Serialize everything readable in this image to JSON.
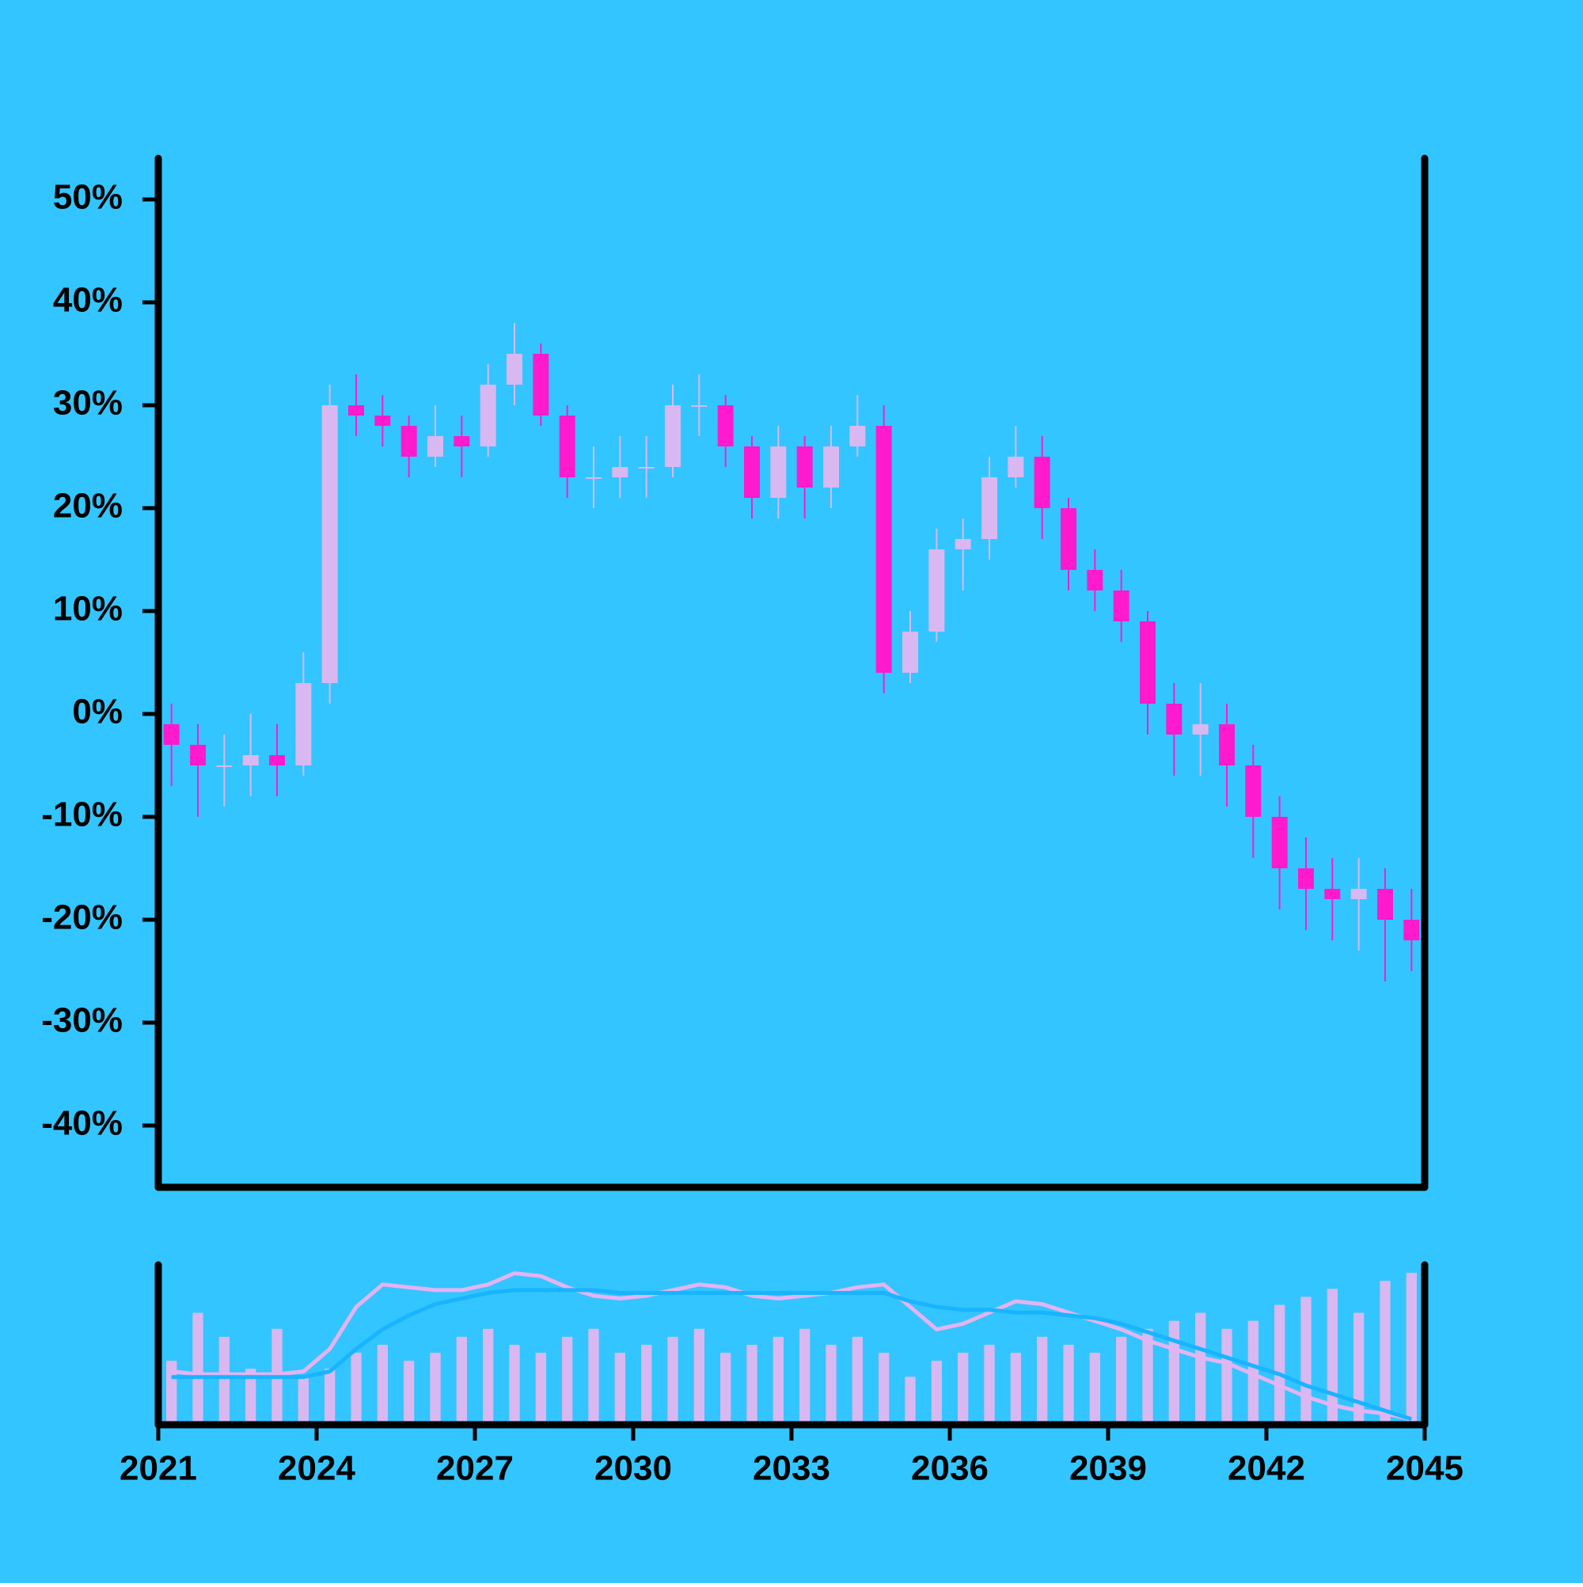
{
  "chart_data": {
    "type": "candlestick",
    "background": "#33c5ff",
    "up_color": "#d9b8f2",
    "down_color": "#ff1acd",
    "x": [
      2021,
      2021.5,
      2022,
      2022.5,
      2023,
      2023.5,
      2024,
      2024.5,
      2025,
      2025.5,
      2026,
      2026.5,
      2027,
      2027.5,
      2028,
      2028.5,
      2029,
      2029.5,
      2030,
      2030.5,
      2031,
      2031.5,
      2032,
      2032.5,
      2033,
      2033.5,
      2034,
      2034.5,
      2035,
      2035.5,
      2036,
      2036.5,
      2037,
      2037.5,
      2038,
      2038.5,
      2039,
      2039.5,
      2040,
      2040.5,
      2041,
      2041.5,
      2042,
      2042.5,
      2043,
      2043.5,
      2044,
      2044.5
    ],
    "open": [
      -1,
      -3,
      -5,
      -5,
      -4,
      -5,
      3,
      30,
      29,
      28,
      25,
      27,
      26,
      32,
      35,
      29,
      23,
      23,
      24,
      24,
      30,
      30,
      26,
      21,
      26,
      22,
      26,
      28,
      4,
      8,
      16,
      17,
      23,
      25,
      20,
      14,
      12,
      9,
      1,
      -2,
      -1,
      -5,
      -10,
      -15,
      -17,
      -18,
      -17,
      -20
    ],
    "close": [
      -3,
      -5,
      -5,
      -4,
      -5,
      3,
      30,
      29,
      28,
      25,
      27,
      26,
      32,
      35,
      29,
      23,
      23,
      24,
      24,
      30,
      30,
      26,
      21,
      26,
      22,
      26,
      28,
      4,
      8,
      16,
      17,
      23,
      25,
      20,
      14,
      12,
      9,
      1,
      -2,
      -1,
      -5,
      -10,
      -15,
      -17,
      -18,
      -17,
      -20,
      -22
    ],
    "high": [
      1,
      -1,
      -2,
      0,
      -1,
      6,
      32,
      33,
      31,
      29,
      30,
      29,
      34,
      38,
      36,
      30,
      26,
      27,
      27,
      32,
      33,
      31,
      27,
      28,
      27,
      28,
      31,
      30,
      10,
      18,
      19,
      25,
      28,
      27,
      21,
      16,
      14,
      10,
      3,
      3,
      1,
      -3,
      -8,
      -12,
      -14,
      -14,
      -15,
      -17
    ],
    "low": [
      -7,
      -10,
      -9,
      -8,
      -8,
      -6,
      1,
      27,
      26,
      23,
      24,
      23,
      25,
      30,
      28,
      21,
      20,
      21,
      21,
      23,
      27,
      24,
      19,
      19,
      19,
      20,
      25,
      2,
      3,
      7,
      12,
      15,
      22,
      17,
      12,
      10,
      7,
      -2,
      -6,
      -6,
      -9,
      -14,
      -19,
      -21,
      -22,
      -23,
      -26,
      -25
    ],
    "volume": [
      40,
      70,
      55,
      35,
      60,
      30,
      35,
      45,
      50,
      40,
      45,
      55,
      60,
      50,
      45,
      55,
      60,
      45,
      50,
      55,
      60,
      45,
      50,
      55,
      60,
      50,
      55,
      45,
      30,
      40,
      45,
      50,
      45,
      55,
      50,
      45,
      55,
      60,
      65,
      70,
      60,
      65,
      75,
      80,
      85,
      70,
      90,
      95
    ],
    "volume_ylim": [
      0,
      100
    ],
    "overlay_ylim": [
      -22,
      35
    ],
    "overlays": [
      {
        "color": "#e4b3f2",
        "values": [
          -3,
          -4,
          -4,
          -4,
          -4,
          -3,
          5,
          20,
          28,
          27,
          26,
          26,
          28,
          32,
          31,
          27,
          24,
          23,
          24,
          26,
          28,
          27,
          24,
          23,
          24,
          25,
          27,
          28,
          20,
          12,
          14,
          18,
          22,
          21,
          18,
          15,
          12,
          8,
          5,
          2,
          0,
          -4,
          -8,
          -12,
          -15,
          -17,
          -18,
          -20
        ]
      },
      {
        "color": "#18b4ff",
        "values": [
          -5,
          -5,
          -5,
          -5,
          -5,
          -5,
          -3,
          5,
          12,
          17,
          21,
          23,
          25,
          26,
          26,
          26,
          26,
          25,
          25,
          25,
          25,
          25,
          25,
          25,
          25,
          25,
          25,
          25,
          22,
          20,
          19,
          19,
          18,
          18,
          17,
          16,
          14,
          11,
          8,
          5,
          2,
          -1,
          -4,
          -8,
          -11,
          -14,
          -17,
          -20
        ]
      }
    ],
    "xlim": [
      2021,
      2045
    ],
    "xticks": [
      2021,
      2024,
      2027,
      2030,
      2033,
      2036,
      2039,
      2042,
      2045
    ],
    "ylim": [
      -46,
      54
    ],
    "yticks": [
      {
        "value": -40,
        "label": "-40%"
      },
      {
        "value": -30,
        "label": "-30%"
      },
      {
        "value": -20,
        "label": "-20%"
      },
      {
        "value": -10,
        "label": "-10%"
      },
      {
        "value": 0,
        "label": "0%"
      },
      {
        "value": 10,
        "label": "10%"
      },
      {
        "value": 20,
        "label": "20%"
      },
      {
        "value": 30,
        "label": "30%"
      },
      {
        "value": 40,
        "label": "40%"
      },
      {
        "value": 50,
        "label": "50%"
      }
    ]
  }
}
